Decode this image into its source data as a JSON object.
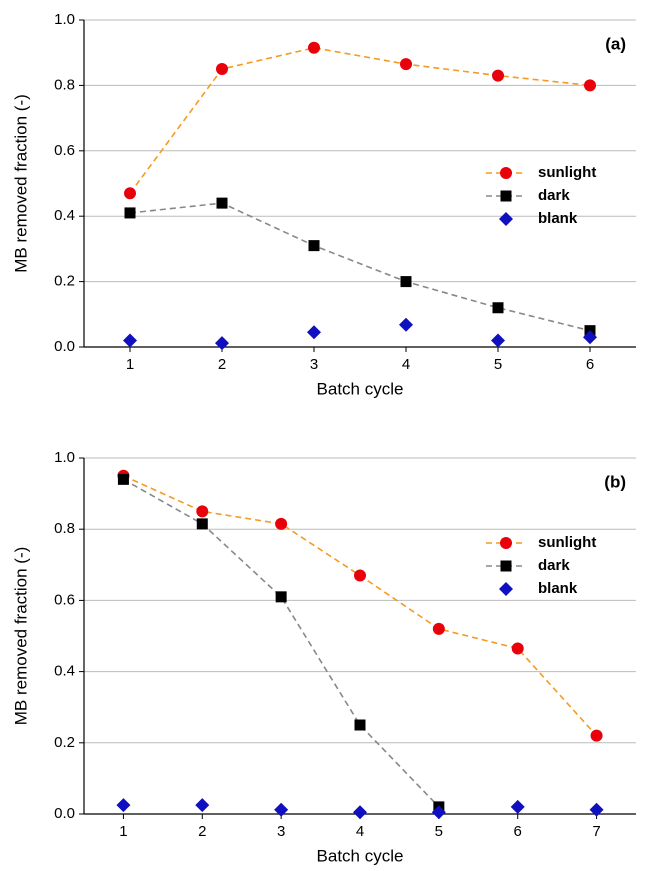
{
  "chart_data": [
    {
      "type": "line",
      "annotation": "(a)",
      "x_label": "Batch cycle",
      "y_label": "MB removed fraction (-)",
      "x": [
        1,
        2,
        3,
        4,
        5,
        6
      ],
      "xlim": [
        0.5,
        6.5
      ],
      "xticks": [
        1,
        2,
        3,
        4,
        5,
        6
      ],
      "ylim": [
        0,
        1
      ],
      "yticks": [
        {
          "value": 0,
          "label": "0.0"
        },
        0.2,
        0.4,
        0.6,
        0.8,
        {
          "value": 1,
          "label": "1.0"
        }
      ],
      "grid": true,
      "legend": "right",
      "series": [
        {
          "name": "sunlight",
          "color": "#e8000b",
          "line_color": "#f59a23",
          "marker": "circle",
          "linestyle": "dashed",
          "values": [
            0.47,
            0.85,
            0.915,
            0.865,
            0.83,
            0.8
          ]
        },
        {
          "name": "dark",
          "color": "#000000",
          "line_color": "#888888",
          "marker": "square",
          "linestyle": "dashed",
          "values": [
            0.41,
            0.44,
            0.31,
            0.2,
            0.12,
            0.05
          ]
        },
        {
          "name": "blank",
          "color": "#1010c0",
          "line_color": "#1010c0",
          "marker": "diamond",
          "linestyle": "none",
          "values": [
            0.02,
            0.012,
            0.045,
            0.068,
            0.02,
            0.03
          ]
        }
      ]
    },
    {
      "type": "line",
      "annotation": "(b)",
      "x_label": "Batch cycle",
      "y_label": "MB removed fraction (-)",
      "x": [
        1,
        2,
        3,
        4,
        5,
        6,
        7
      ],
      "xlim": [
        0.5,
        7.5
      ],
      "xticks": [
        1,
        2,
        3,
        4,
        5,
        6,
        7
      ],
      "ylim": [
        0,
        1
      ],
      "yticks": [
        {
          "value": 0,
          "label": "0.0"
        },
        0.2,
        0.4,
        0.6,
        0.8,
        {
          "value": 1,
          "label": "1.0"
        }
      ],
      "grid": true,
      "legend": "upper right",
      "series": [
        {
          "name": "sunlight",
          "color": "#e8000b",
          "line_color": "#f59a23",
          "marker": "circle",
          "linestyle": "dashed",
          "values": [
            0.95,
            0.85,
            0.815,
            0.67,
            0.52,
            0.465,
            0.22
          ]
        },
        {
          "name": "dark",
          "color": "#000000",
          "line_color": "#888888",
          "marker": "square",
          "linestyle": "dashed",
          "values": [
            0.94,
            0.815,
            0.61,
            0.25,
            0.02,
            null,
            null
          ]
        },
        {
          "name": "blank",
          "color": "#1010c0",
          "line_color": "#1010c0",
          "marker": "diamond",
          "linestyle": "none",
          "values": [
            0.025,
            0.025,
            0.012,
            0.005,
            0.005,
            0.02,
            0.012
          ]
        }
      ]
    }
  ]
}
